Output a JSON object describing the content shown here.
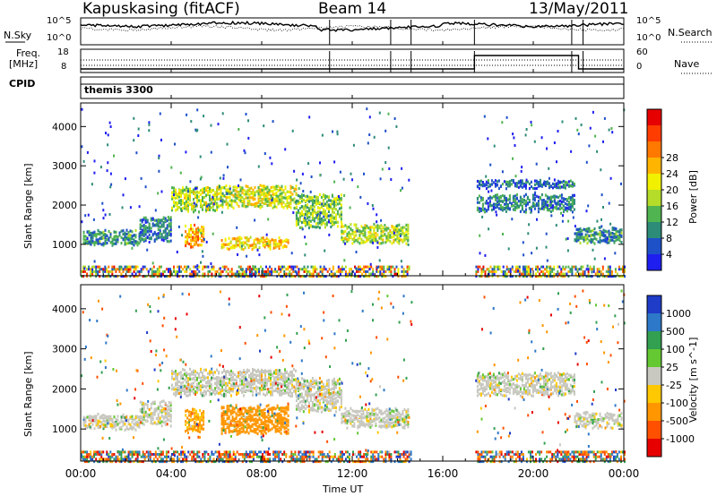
{
  "header": {
    "station": "Kapuskasing (fitACF)",
    "beam": "Beam 14",
    "date": "13/May/2011"
  },
  "summary_panels": {
    "nsky_label": "N.Sky",
    "nsky_ticks": [
      "10^5",
      "10^0"
    ],
    "nsearch_label": "N.Search",
    "nsearch_ticks": [
      "10^5",
      "10^0"
    ],
    "freq_label_line1": "Freq.",
    "freq_label_line2": "[MHz]",
    "freq_ticks": [
      "18",
      "8"
    ],
    "nave_label": "Nave",
    "nave_ticks": [
      "60",
      "0"
    ],
    "cpid_label": "CPID",
    "cpid_value": "themis 3300"
  },
  "chart_data": [
    {
      "type": "heatmap",
      "name": "power-panel",
      "ylabel": "Slant Range [km]",
      "xlabel": "Time UT",
      "x_ticks": [
        "00:00",
        "04:00",
        "08:00",
        "12:00",
        "16:00",
        "20:00",
        "00:00"
      ],
      "x_range_hours": [
        0,
        24
      ],
      "y_ticks": [
        1000,
        2000,
        3000,
        4000
      ],
      "ylim": [
        200,
        4600
      ],
      "colorbar": {
        "label": "Power [dB]",
        "ticks": [
          "4",
          "8",
          "12",
          "16",
          "20",
          "24",
          "28"
        ],
        "range": [
          0,
          30
        ],
        "colors": [
          "#1e1ef0",
          "#1e50c8",
          "#2d8c78",
          "#50b450",
          "#b4dc28",
          "#f0f000",
          "#ffb400",
          "#ff7800",
          "#ff3c00",
          "#e60000"
        ]
      },
      "data_gap_hours": [
        14.6,
        17.4
      ],
      "bands": [
        {
          "t0": 0.1,
          "t1": 2.6,
          "r0": 1050,
          "r1": 1400,
          "level": 8
        },
        {
          "t0": 2.6,
          "t1": 4.0,
          "r0": 1150,
          "r1": 1700,
          "level": 7
        },
        {
          "t0": 4.0,
          "t1": 6.0,
          "r0": 1900,
          "r1": 2450,
          "level": 14
        },
        {
          "t0": 6.0,
          "t1": 9.5,
          "r0": 2000,
          "r1": 2500,
          "level": 15
        },
        {
          "t0": 9.5,
          "t1": 11.5,
          "r0": 1500,
          "r1": 2300,
          "level": 12
        },
        {
          "t0": 11.5,
          "t1": 14.5,
          "r0": 1100,
          "r1": 1550,
          "level": 14
        },
        {
          "t0": 4.6,
          "t1": 5.4,
          "r0": 1000,
          "r1": 1500,
          "level": 20
        },
        {
          "t0": 6.2,
          "t1": 9.2,
          "r0": 950,
          "r1": 1200,
          "level": 18
        },
        {
          "t0": 17.5,
          "t1": 21.8,
          "r0": 1900,
          "r1": 2300,
          "level": 7
        },
        {
          "t0": 17.5,
          "t1": 21.8,
          "r0": 2500,
          "r1": 2650,
          "level": 5
        },
        {
          "t0": 21.8,
          "t1": 23.9,
          "r0": 1100,
          "r1": 1450,
          "level": 8
        }
      ]
    },
    {
      "type": "heatmap",
      "name": "velocity-panel",
      "ylabel": "Slant Range [km]",
      "xlabel": "Time UT",
      "x_ticks": [
        "00:00",
        "04:00",
        "08:00",
        "12:00",
        "16:00",
        "20:00",
        "00:00"
      ],
      "x_range_hours": [
        0,
        24
      ],
      "y_ticks": [
        1000,
        2000,
        3000,
        4000
      ],
      "ylim": [
        200,
        4600
      ],
      "colorbar": {
        "label": "Velocity [m s^-1]",
        "ticks": [
          "1000",
          "500",
          "100",
          "25",
          "-25",
          "-100",
          "-500",
          "-1000"
        ],
        "colors": [
          "#1e3cc8",
          "#2d78c8",
          "#32a050",
          "#64c832",
          "#c8c8c0",
          "#ffc800",
          "#ff9600",
          "#ff5000",
          "#e60000"
        ]
      },
      "data_gap_hours": [
        14.6,
        17.4
      ],
      "bands": [
        {
          "t0": 0.1,
          "t1": 2.6,
          "r0": 1050,
          "r1": 1400,
          "vel": 0
        },
        {
          "t0": 2.6,
          "t1": 4.0,
          "r0": 1150,
          "r1": 1700,
          "vel": 0
        },
        {
          "t0": 4.0,
          "t1": 9.5,
          "r0": 1900,
          "r1": 2500,
          "vel": 0
        },
        {
          "t0": 9.5,
          "t1": 11.5,
          "r0": 1500,
          "r1": 2300,
          "vel": 0
        },
        {
          "t0": 11.5,
          "t1": 14.5,
          "r0": 1100,
          "r1": 1550,
          "vel": 0
        },
        {
          "t0": 4.6,
          "t1": 5.4,
          "r0": 1000,
          "r1": 1500,
          "vel": -100
        },
        {
          "t0": 6.2,
          "t1": 9.2,
          "r0": 950,
          "r1": 1600,
          "vel": -150
        },
        {
          "t0": 17.5,
          "t1": 21.8,
          "r0": 1900,
          "r1": 2400,
          "vel": 0
        },
        {
          "t0": 21.8,
          "t1": 23.9,
          "r0": 1100,
          "r1": 1450,
          "vel": 0
        }
      ]
    }
  ]
}
